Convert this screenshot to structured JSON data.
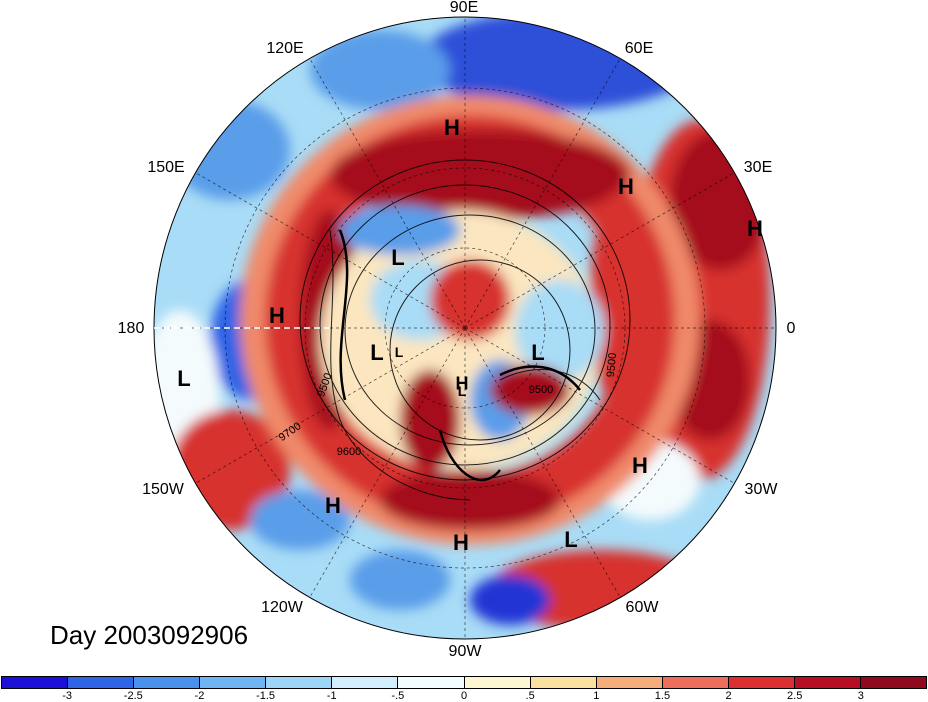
{
  "day_label": "Day 2003092906",
  "longitude_labels": [
    "90E",
    "60E",
    "30E",
    "0",
    "30W",
    "60W",
    "90W",
    "120W",
    "150W",
    "180",
    "150E",
    "120E"
  ],
  "contour_labels": [
    "9500",
    "9500",
    "9600",
    "9700",
    "9500"
  ],
  "pressure_centers": [
    "H",
    "H",
    "H",
    "H",
    "H",
    "H",
    "H",
    "H",
    "L",
    "L",
    "L",
    "L",
    "L",
    "L",
    "L"
  ],
  "colorbar": {
    "ticks": [
      "-3",
      "-2.5",
      "-2",
      "-1.5",
      "-1",
      "-.5",
      "0",
      ".5",
      "1",
      "1.5",
      "2",
      "2.5",
      "3"
    ],
    "colors": [
      "#1c0fd6",
      "#2f64e6",
      "#4a91ee",
      "#6fb4f3",
      "#9dd5f8",
      "#d2edfb",
      "#f2fbfd",
      "#fdf6d3",
      "#fbe1a1",
      "#f5ad7b",
      "#ed6f5b",
      "#db2f32",
      "#b80e23",
      "#8f0a1c"
    ]
  },
  "map": {
    "projection": "north polar stereographic",
    "field_colors": {
      "deep_red": "#a50f1f",
      "red": "#d7312e",
      "light_red": "#f08a6a",
      "cream": "#fbe6c0",
      "white": "#f4fbfd",
      "light_blue": "#a9dcf6",
      "blue": "#5a9de9",
      "deep_blue": "#2335d4"
    }
  }
}
